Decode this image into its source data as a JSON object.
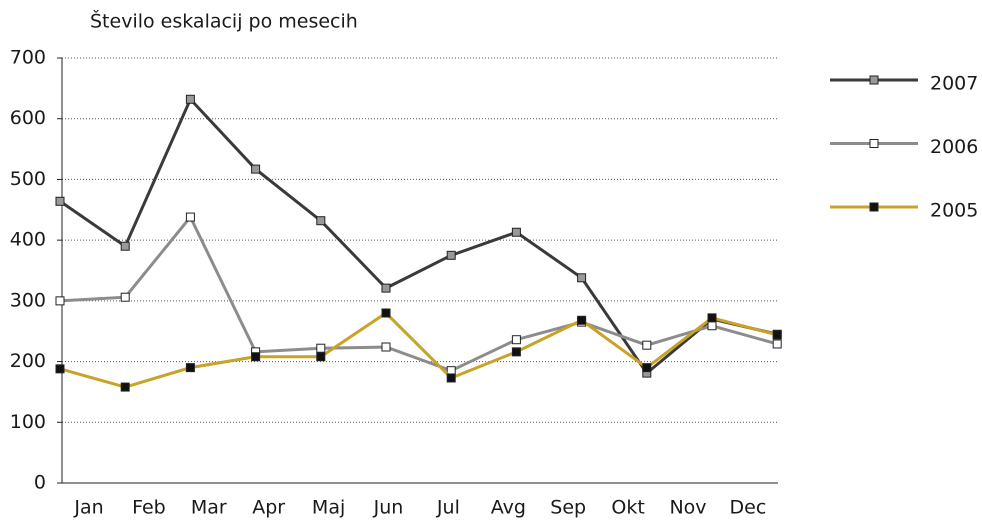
{
  "chart_data": {
    "type": "line",
    "title": "Število eskalacij po mesecih",
    "categories": [
      "Jan",
      "Feb",
      "Mar",
      "Apr",
      "Maj",
      "Jun",
      "Jul",
      "Avg",
      "Sep",
      "Okt",
      "Nov",
      "Dec"
    ],
    "series": [
      {
        "name": "2007",
        "color": "#3a3a3a",
        "marker_color": "#999999",
        "values": [
          464,
          390,
          632,
          517,
          432,
          321,
          375,
          413,
          338,
          181,
          270,
          245
        ]
      },
      {
        "name": "2006",
        "color": "#8c8c8c",
        "marker_color": "#ffffff",
        "values": [
          300,
          306,
          438,
          216,
          222,
          224,
          185,
          236,
          265,
          227,
          259,
          229
        ]
      },
      {
        "name": "2005",
        "color": "#c9a227",
        "marker_color": "#111111",
        "values": [
          188,
          158,
          190,
          208,
          208,
          280,
          173,
          216,
          268,
          190,
          272,
          244
        ]
      }
    ],
    "ylim": [
      0,
      700
    ],
    "yticks": [
      0,
      100,
      200,
      300,
      400,
      500,
      600,
      700
    ],
    "grid": true,
    "legend": "right"
  }
}
